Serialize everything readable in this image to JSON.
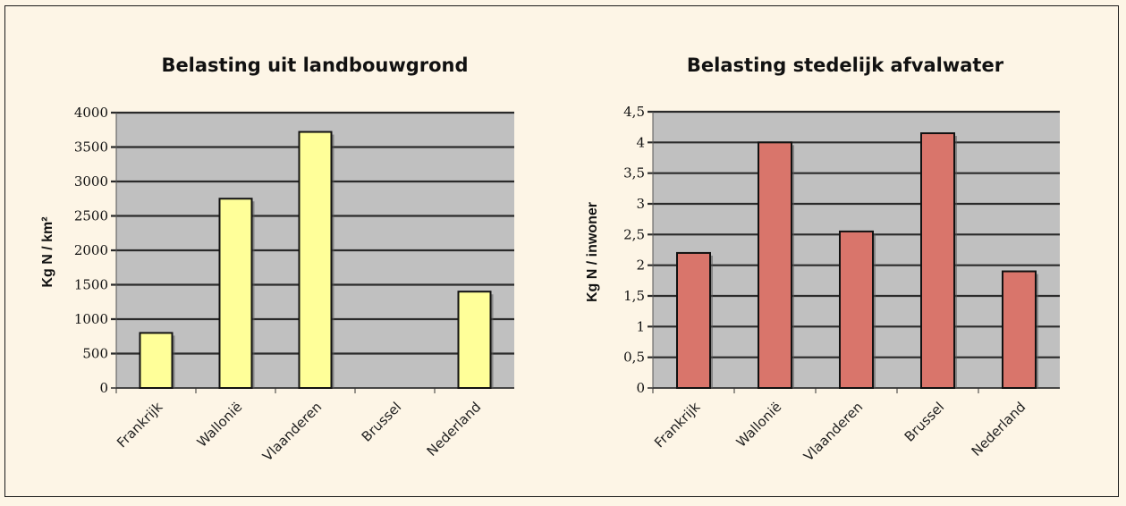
{
  "colors": {
    "background": "#fdf5e6",
    "plot_area": "#c0c0c0",
    "gridline": "#2a2a2a",
    "bar_left": "#ffff99",
    "bar_right": "#d9756b",
    "bar_outline": "#111111"
  },
  "chart_data": [
    {
      "type": "bar",
      "title": "Belasting uit landbouwgrond",
      "ylabel": "Kg N / km²",
      "xlabel": "",
      "categories": [
        "Frankrijk",
        "Wallonië",
        "Vlaanderen",
        "Brussel",
        "Nederland"
      ],
      "values": [
        800,
        2750,
        3720,
        0,
        1400
      ],
      "ylim": [
        0,
        4000
      ],
      "yticks": [
        0,
        500,
        1000,
        1500,
        2000,
        2500,
        3000,
        3500,
        4000
      ],
      "ytick_labels": [
        "0",
        "500",
        "1000",
        "1500",
        "2000",
        "2500",
        "3000",
        "3500",
        "4000"
      ],
      "grid": true,
      "legend": "none"
    },
    {
      "type": "bar",
      "title": "Belasting stedelijk afvalwater",
      "ylabel": "Kg N / inwoner",
      "xlabel": "",
      "categories": [
        "Frankrijk",
        "Wallonië",
        "Vlaanderen",
        "Brussel",
        "Nederland"
      ],
      "values": [
        2.2,
        4.0,
        2.55,
        4.15,
        1.9
      ],
      "ylim": [
        0,
        4.5
      ],
      "yticks": [
        0,
        0.5,
        1,
        1.5,
        2,
        2.5,
        3,
        3.5,
        4,
        4.5
      ],
      "ytick_labels": [
        "0",
        "0,5",
        "1",
        "1,5",
        "2",
        "2,5",
        "3",
        "3,5",
        "4",
        "4,5"
      ],
      "grid": true,
      "legend": "none"
    }
  ]
}
